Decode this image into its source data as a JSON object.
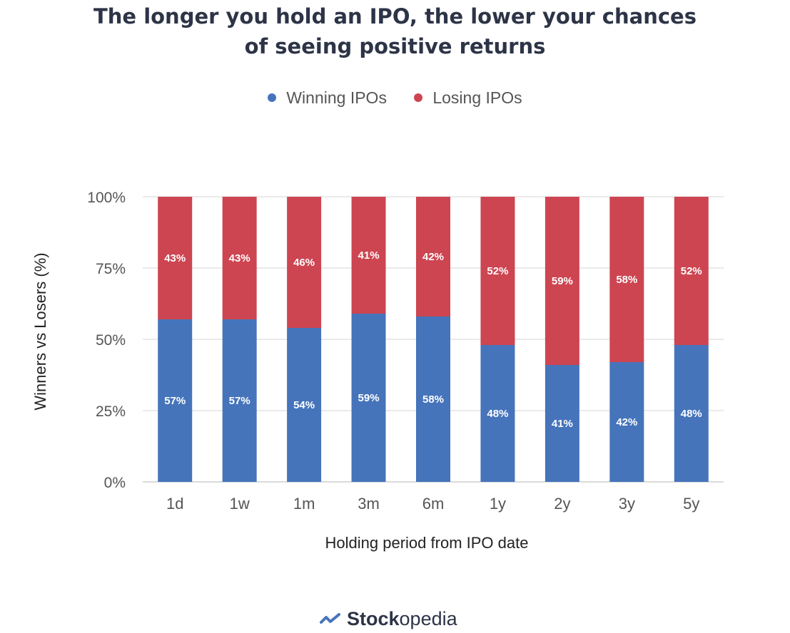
{
  "title_line1": "The longer you hold an IPO, the lower your chances",
  "title_line2": "of seeing positive returns",
  "legend": [
    {
      "label": "Winning IPOs",
      "color": "#4674bb"
    },
    {
      "label": "Losing IPOs",
      "color": "#cd4551"
    }
  ],
  "brand": {
    "bold": "Stock",
    "rest": "opedia"
  },
  "chart_data": {
    "type": "bar",
    "stacked": true,
    "title": "The longer you hold an IPO, the lower your chances of seeing positive returns",
    "xlabel": "Holding period from IPO date",
    "ylabel": "Winners vs Losers (%)",
    "ylim": [
      0,
      100
    ],
    "yticks": [
      "0%",
      "25%",
      "50%",
      "75%",
      "100%"
    ],
    "grid": true,
    "legend_position": "top",
    "categories": [
      "1d",
      "1w",
      "1m",
      "3m",
      "6m",
      "1y",
      "2y",
      "3y",
      "5y"
    ],
    "series": [
      {
        "name": "Winning IPOs",
        "color": "#4674bb",
        "values": [
          57,
          57,
          54,
          59,
          58,
          48,
          41,
          42,
          48
        ],
        "labels": [
          "57%",
          "57%",
          "54%",
          "59%",
          "58%",
          "48%",
          "41%",
          "42%",
          "48%"
        ]
      },
      {
        "name": "Losing IPOs",
        "color": "#cd4551",
        "values": [
          43,
          43,
          46,
          41,
          42,
          52,
          59,
          58,
          52
        ],
        "labels": [
          "43%",
          "43%",
          "46%",
          "41%",
          "42%",
          "52%",
          "59%",
          "58%",
          "52%"
        ]
      }
    ]
  }
}
